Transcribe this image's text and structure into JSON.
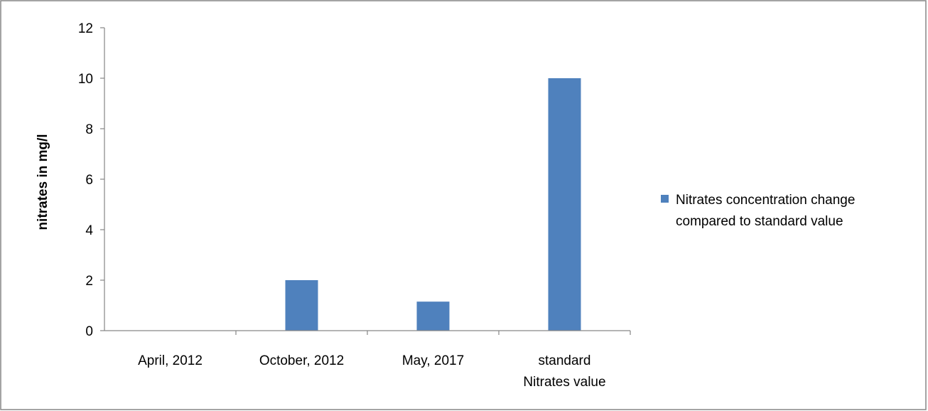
{
  "chart_data": {
    "type": "bar",
    "title": "",
    "xlabel": "",
    "ylabel": "nitrates in mg/l",
    "ylim": [
      0,
      12
    ],
    "y_ticks": [
      0,
      2,
      4,
      6,
      8,
      10,
      12
    ],
    "grid": false,
    "legend_position": "right",
    "categories": [
      [
        "April, 2012"
      ],
      [
        "October, 2012"
      ],
      [
        "May, 2017"
      ],
      [
        "standard",
        "Nitrates value"
      ]
    ],
    "series": [
      {
        "name": "Nitrates concentration change compared to standard value",
        "legend_lines": [
          "Nitrates concentration change",
          "compared to standard value"
        ],
        "color": "#4f81bd",
        "values": [
          0,
          2,
          1.15,
          10
        ]
      }
    ]
  }
}
